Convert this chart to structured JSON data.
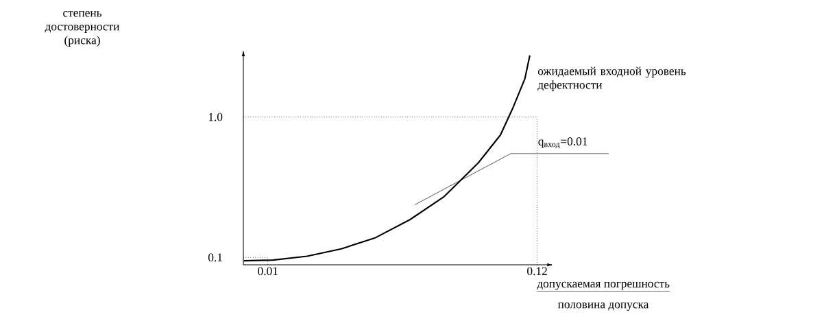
{
  "chart_data": {
    "type": "line",
    "xlabel": "допускаемая погрешность",
    "xlim": [
      0,
      0.126
    ],
    "ylim": [
      0.053,
      1.42
    ],
    "xticks": [
      0.01,
      0.12
    ],
    "yticks": [
      0.1,
      {
        "value": 1,
        "label": "1.0"
      }
    ],
    "series": [
      {
        "name": "ожидаемый входной уровень дефектности",
        "color": "#000000",
        "x": [
          0.0002,
          0.012,
          0.026,
          0.04,
          0.054,
          0.068,
          0.082,
          0.096,
          0.105,
          0.11,
          0.115,
          0.117
        ],
        "values": [
          0.079,
          0.083,
          0.108,
          0.155,
          0.227,
          0.342,
          0.49,
          0.707,
          0.885,
          1.055,
          1.246,
          1.395
        ]
      }
    ],
    "ref_lines": [
      {
        "axis": "y",
        "value": 1,
        "line_style": "dotted"
      },
      {
        "axis": "x",
        "value": 0.12,
        "line_style": "dotted"
      }
    ],
    "annotations": [
      {
        "text": "q$_{вход}$=0.01",
        "x": 0.0887,
        "y": 0.594
      },
      "половина допуска",
      "степень достоверности (риска)"
    ],
    "grid": false,
    "legend": false,
    "marker": "none",
    "line_style": "solid"
  }
}
